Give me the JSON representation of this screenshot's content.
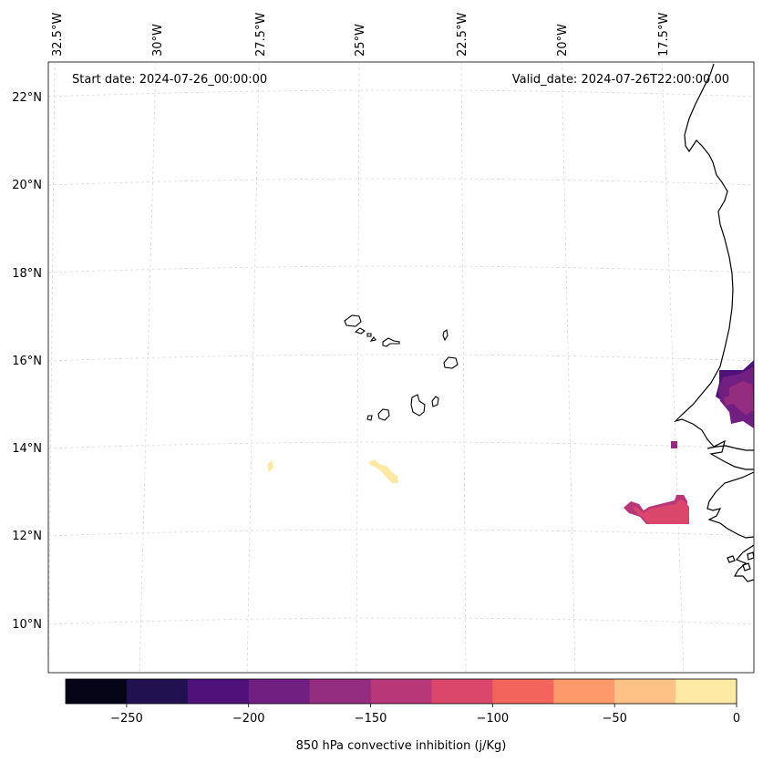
{
  "map": {
    "start_date": "Start date: 2024-07-26_00:00:00",
    "valid_date": "Valid_date: 2024-07-26T22:00:00.00",
    "longitude_labels": [
      "32.5°W",
      "30°W",
      "27.5°W",
      "25°W",
      "22.5°W",
      "20°W",
      "17.5°W"
    ],
    "latitude_labels": [
      "22°N",
      "20°N",
      "18°N",
      "16°N",
      "14°N",
      "12°N",
      "10°N"
    ],
    "gridline_color": "#d9d9d9",
    "coastline_color": "#000000"
  },
  "colorbar": {
    "label": "850 hPa convective inhibition (j/Kg)",
    "ticks": [
      "−250",
      "−200",
      "−150",
      "−100",
      "−50",
      "0"
    ],
    "bins": [
      -275,
      -250,
      -225,
      -200,
      -175,
      -150,
      -125,
      -100,
      -75,
      -50,
      -25,
      0
    ],
    "colors": [
      "#050417",
      "#221150",
      "#4f127b",
      "#711f81",
      "#942c80",
      "#b73779",
      "#db476a",
      "#f3655c",
      "#fe9a6a",
      "#fec287",
      "#fde9a4"
    ]
  },
  "fields": [
    {
      "name": "senegal-coast-cin",
      "colors": [
        "#4f127b",
        "#711f81",
        "#942c80"
      ]
    },
    {
      "name": "offshore-pixel-cin",
      "colors": [
        "#942c80"
      ]
    },
    {
      "name": "guinea-bissau-cin",
      "colors": [
        "#b73779",
        "#db476a"
      ]
    },
    {
      "name": "south-island-cin",
      "colors": [
        "#fde9a4"
      ]
    },
    {
      "name": "west-pixel-cin",
      "colors": [
        "#fde9a4"
      ]
    }
  ]
}
